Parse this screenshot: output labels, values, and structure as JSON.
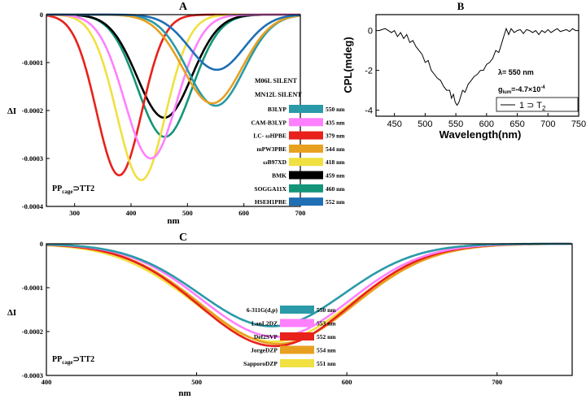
{
  "figure": {
    "panels": [
      "A",
      "B",
      "C"
    ]
  },
  "chart_data": [
    {
      "id": "A",
      "type": "line",
      "title": "A",
      "xlabel": "nm",
      "ylabel": "ΔI",
      "xlim": [
        250,
        700
      ],
      "ylim": [
        -0.0004,
        0
      ],
      "xticks": [
        300,
        400,
        500,
        600,
        700
      ],
      "yticks": [
        0,
        -0.0001,
        -0.0002,
        -0.0003,
        -0.0004
      ],
      "ytick_labels": [
        "0",
        "-0.0001",
        "-0.0002",
        "-0.0003",
        "-0.0004"
      ],
      "annotation_main": "PP",
      "annotation_sub": "cage",
      "annotation_rest": "⊃TT2",
      "silent_notes": [
        "M06L SILENT",
        "MN12L SILENT"
      ],
      "series": [
        {
          "name": "B3LYP",
          "peak_nm": 550,
          "label": "550 nm",
          "amplitude": -0.00019,
          "width": 50,
          "color": "#2a9aa8"
        },
        {
          "name": "CAM-B3LYP",
          "peak_nm": 435,
          "label": "435 nm",
          "amplitude": -0.0003,
          "width": 46,
          "color": "#ff80ff"
        },
        {
          "name": "LC- ωHPBE",
          "peak_nm": 379,
          "label": "379 nm",
          "amplitude": -0.000335,
          "width": 40,
          "color": "#e8211b"
        },
        {
          "name": "mPW3PBE",
          "peak_nm": 544,
          "label": "544 nm",
          "amplitude": -0.000185,
          "width": 52,
          "color": "#e8a020"
        },
        {
          "name": "ωB97XD",
          "peak_nm": 418,
          "label": "418 nm",
          "amplitude": -0.000345,
          "width": 43,
          "color": "#f0e040"
        },
        {
          "name": "BMK",
          "peak_nm": 459,
          "label": "459 nm",
          "amplitude": -0.000215,
          "width": 48,
          "color": "#000000"
        },
        {
          "name": "SOGGA11X",
          "peak_nm": 460,
          "label": "460 nm",
          "amplitude": -0.000255,
          "width": 48,
          "color": "#14957a"
        },
        {
          "name": "HSEH1PBE",
          "peak_nm": 552,
          "label": "552 nm",
          "amplitude": -0.000115,
          "width": 48,
          "color": "#1f6fb5"
        }
      ]
    },
    {
      "id": "B",
      "type": "line",
      "title": "B",
      "xlabel": "Wavelength(nm)",
      "ylabel": "CPL(mdeg)",
      "xlim": [
        420,
        750
      ],
      "ylim": [
        -4.3,
        0.8
      ],
      "xticks": [
        450,
        500,
        550,
        600,
        650,
        700,
        750
      ],
      "yticks": [
        0,
        -2,
        -4
      ],
      "annotation_lambda": "λ= 550 nm",
      "annotation_g_main": "g",
      "annotation_g_sub": "lum",
      "annotation_g_value": "=-4.7×10",
      "annotation_g_exp": "-4",
      "legend_label": "1 ⊃ T",
      "legend_sub": "2",
      "series": [
        {
          "name": "1 ⊃ T2",
          "color": "#000000",
          "x": [
            425,
            430,
            435,
            440,
            445,
            450,
            455,
            460,
            465,
            470,
            475,
            480,
            485,
            490,
            495,
            500,
            505,
            510,
            515,
            520,
            525,
            530,
            535,
            540,
            543,
            546,
            549,
            552,
            555,
            558,
            561,
            565,
            570,
            575,
            580,
            585,
            590,
            595,
            600,
            605,
            610,
            615,
            620,
            625,
            628,
            632,
            636,
            640,
            645,
            650,
            655,
            660,
            665,
            670,
            675,
            680,
            685,
            690,
            695,
            700,
            705,
            710,
            715,
            720,
            725,
            730,
            735,
            740,
            745,
            750
          ],
          "y": [
            0.0,
            0.05,
            0.1,
            0.0,
            -0.1,
            0.0,
            -0.3,
            -0.1,
            -0.4,
            -0.2,
            -0.6,
            -0.5,
            -0.8,
            -1.0,
            -1.2,
            -1.6,
            -1.5,
            -2.0,
            -2.2,
            -2.4,
            -2.5,
            -2.8,
            -3.0,
            -3.0,
            -3.4,
            -3.2,
            -3.6,
            -3.75,
            -3.6,
            -3.3,
            -3.0,
            -3.1,
            -2.7,
            -2.5,
            -2.3,
            -2.2,
            -2.0,
            -2.0,
            -1.7,
            -1.6,
            -1.4,
            -1.0,
            -1.1,
            -0.6,
            -0.3,
            0.1,
            -0.2,
            0.1,
            -0.1,
            0.0,
            0.05,
            -0.15,
            0.05,
            0.0,
            -0.1,
            0.0,
            -0.2,
            0.0,
            -0.1,
            0.05,
            -0.1,
            0.0,
            0.1,
            -0.05,
            0.0,
            0.05,
            -0.05,
            0.1,
            0.0,
            0.0
          ]
        }
      ]
    },
    {
      "id": "C",
      "type": "line",
      "title": "C",
      "xlabel": "nm",
      "ylabel": "ΔI",
      "xlim": [
        400,
        750
      ],
      "ylim": [
        -0.0003,
        0
      ],
      "xticks": [
        400,
        500,
        600,
        700
      ],
      "yticks": [
        0,
        -0.0001,
        -0.0002,
        -0.0003
      ],
      "ytick_labels": [
        "0",
        "-0.0001",
        "-0.0002",
        "-0.0003"
      ],
      "annotation_main": "PP",
      "annotation_sub": "cage",
      "annotation_rest": "⊃TT2",
      "series": [
        {
          "name": "6-311G(d,p)",
          "peak_nm": 550,
          "label": "550 nm",
          "amplitude": -0.000188,
          "width": 48,
          "color": "#2a9aa8"
        },
        {
          "name": "LanL2DZ",
          "peak_nm": 553,
          "label": "553 nm",
          "amplitude": -0.000212,
          "width": 49,
          "color": "#ff80ff"
        },
        {
          "name": "Def2SVP",
          "peak_nm": 552,
          "label": "552 nm",
          "amplitude": -0.000233,
          "width": 50,
          "color": "#e8211b"
        },
        {
          "name": "JorgeDZP",
          "peak_nm": 554,
          "label": "554 nm",
          "amplitude": -0.000228,
          "width": 51,
          "color": "#e8a020"
        },
        {
          "name": "SapporoDZP",
          "peak_nm": 551,
          "label": "551 nm",
          "amplitude": -0.000223,
          "width": 52,
          "color": "#f0e040"
        }
      ]
    }
  ]
}
